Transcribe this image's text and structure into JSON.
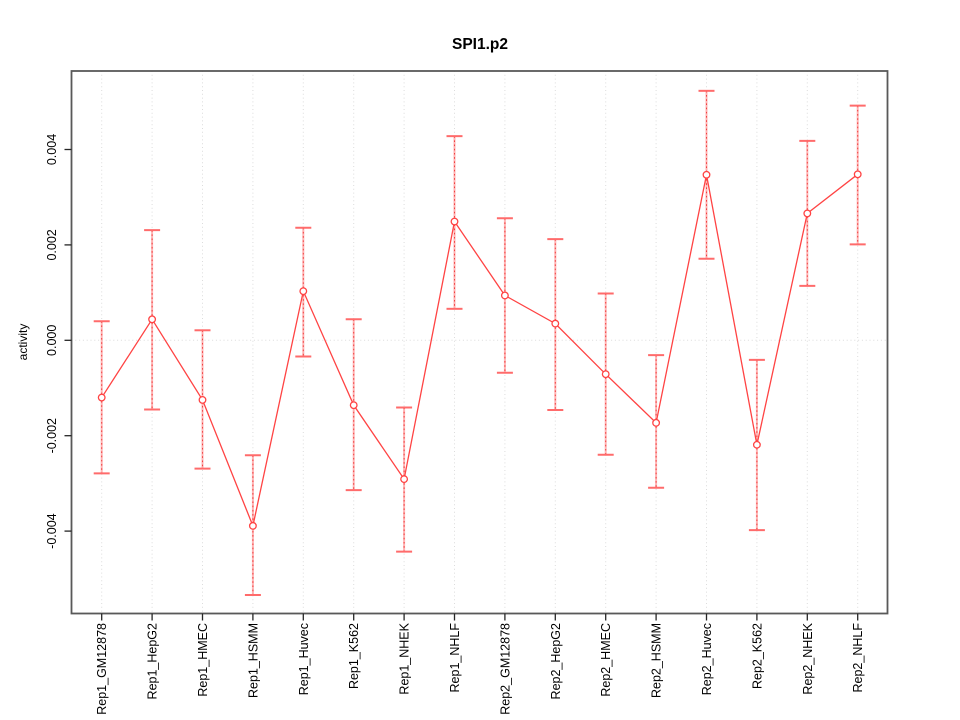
{
  "chart_data": {
    "type": "line",
    "title": "SPI1.p2",
    "xlabel": "",
    "ylabel": "activity",
    "legend": "none",
    "grid": "dotted vertical gridline at every category; dotted horizontal line at y=0",
    "categories": [
      "Rep1_GM12878",
      "Rep1_HepG2",
      "Rep1_HMEC",
      "Rep1_HSMM",
      "Rep1_Huvec",
      "Rep1_K562",
      "Rep1_NHEK",
      "Rep1_NHLF",
      "Rep2_GM12878",
      "Rep2_HepG2",
      "Rep2_HMEC",
      "Rep2_HSMM",
      "Rep2_Huvec",
      "Rep2_K562",
      "Rep2_NHEK",
      "Rep2_NHLF"
    ],
    "series": [
      {
        "name": "activity",
        "marker": "open-circle",
        "values": [
          -0.0012,
          0.00044,
          -0.00125,
          -0.00389,
          0.00103,
          -0.00136,
          -0.00291,
          0.00249,
          0.00094,
          0.00035,
          -0.00071,
          -0.00173,
          0.00347,
          -0.00219,
          0.00266,
          0.00348
        ],
        "upper": [
          0.0004,
          0.00231,
          0.00021,
          -0.00241,
          0.00236,
          0.00044,
          -0.00141,
          0.00428,
          0.00256,
          0.00212,
          0.00098,
          -0.00031,
          0.00523,
          -0.00041,
          0.00418,
          0.00492
        ],
        "lower": [
          -0.00279,
          -0.00145,
          -0.00269,
          -0.00534,
          -0.00034,
          -0.00314,
          -0.00443,
          0.00066,
          -0.00068,
          -0.00146,
          -0.0024,
          -0.00309,
          0.00171,
          -0.00398,
          0.00114,
          0.00201
        ]
      }
    ],
    "ytick_labels": [
      "0.004",
      "0.002",
      "0.000",
      "-0.002",
      "-0.004"
    ],
    "ytick_values": [
      0.004,
      0.002,
      0.0,
      -0.002,
      -0.004
    ],
    "ylim": [
      -0.00575,
      0.00566
    ],
    "zero_line": 0.0,
    "colors": {
      "series_line": "#ff4343",
      "marker_stroke": "#ff4343",
      "errorbar_cap": "#ff6b6b",
      "errorbar_stem_underlay": "#ffb3b3",
      "errorbar_stem_dash": "#ef4040",
      "gridline": "#dcdcdc",
      "plot_border": "#595959",
      "tick": "#262626",
      "text": "#000000",
      "background": "#ffffff"
    }
  }
}
